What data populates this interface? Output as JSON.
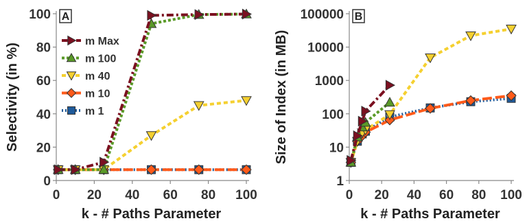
{
  "chart_data": [
    {
      "type": "line",
      "panel_label": "A",
      "xlabel": "k - # Paths Parameter",
      "ylabel": "Selectivity (in %)",
      "xlim": [
        0,
        100
      ],
      "ylim": [
        0,
        100
      ],
      "xticks": [
        0,
        20,
        40,
        60,
        80,
        100
      ],
      "yticks": [
        0,
        20,
        40,
        60,
        80,
        100
      ],
      "yscale": "linear",
      "legend_position": "top-left",
      "series": [
        {
          "name": "m Max",
          "color": "#7b1020",
          "dash": "10,4,3,4",
          "marker": "triangle-right",
          "x": [
            1,
            10,
            25,
            50,
            75,
            100
          ],
          "y": [
            6.5,
            6.5,
            11,
            99,
            99.5,
            99.8
          ]
        },
        {
          "name": "m 100",
          "color": "#5a9a28",
          "dash": "4,3",
          "marker": "triangle-up",
          "x": [
            1,
            10,
            25,
            50,
            75,
            100
          ],
          "y": [
            6.5,
            6.5,
            6.5,
            94,
            99.5,
            99.8
          ]
        },
        {
          "name": "m 40",
          "color": "#f5d030",
          "dash": "6,4",
          "marker": "triangle-down",
          "x": [
            1,
            10,
            25,
            50,
            75,
            100
          ],
          "y": [
            6.5,
            6.5,
            6.5,
            27,
            45,
            48
          ]
        },
        {
          "name": "m 10",
          "color": "#ff5a1a",
          "dash": "14,5",
          "marker": "diamond",
          "x": [
            1,
            10,
            25,
            50,
            75,
            100
          ],
          "y": [
            6.5,
            6.5,
            6.5,
            6.5,
            6.5,
            6.5
          ]
        },
        {
          "name": "m 1",
          "color": "#1f5a9a",
          "dash": "2,3",
          "marker": "square",
          "x": [
            1,
            10,
            25,
            50,
            75,
            100
          ],
          "y": [
            6.5,
            6.5,
            6.5,
            6.5,
            6.5,
            6.5
          ]
        }
      ]
    },
    {
      "type": "line",
      "panel_label": "B",
      "xlabel": "k - # Paths Parameter",
      "ylabel": "Size of Index (in MB)",
      "xlim": [
        0,
        100
      ],
      "ylim": [
        1,
        100000
      ],
      "xticks": [
        0,
        20,
        40,
        60,
        80,
        100
      ],
      "yticks": [
        1,
        10,
        100,
        1000,
        10000,
        100000
      ],
      "yscale": "log",
      "series": [
        {
          "name": "m Max",
          "color": "#7b1020",
          "dash": "10,4,3,4",
          "marker": "triangle-right",
          "x": [
            1,
            5,
            8,
            10,
            25
          ],
          "y": [
            4,
            22,
            60,
            120,
            720
          ]
        },
        {
          "name": "m 100",
          "color": "#5a9a28",
          "dash": "4,3",
          "marker": "triangle-up",
          "x": [
            1,
            5,
            8,
            10,
            25
          ],
          "y": [
            3.5,
            20,
            40,
            55,
            220
          ]
        },
        {
          "name": "m 40",
          "color": "#f5d030",
          "dash": "6,4",
          "marker": "triangle-down",
          "x": [
            1,
            5,
            8,
            10,
            25,
            50,
            75,
            100
          ],
          "y": [
            3.5,
            15,
            27,
            33,
            95,
            4800,
            22000,
            35000
          ]
        },
        {
          "name": "m 10",
          "color": "#ff5a1a",
          "dash": "14,5",
          "marker": "diamond",
          "x": [
            1,
            5,
            8,
            10,
            25,
            50,
            75,
            100
          ],
          "y": [
            3.5,
            15,
            22,
            28,
            65,
            145,
            250,
            350
          ]
        },
        {
          "name": "m 1",
          "color": "#1f5a9a",
          "dash": "2,3",
          "marker": "square",
          "x": [
            1,
            5,
            8,
            10,
            25,
            50,
            75,
            100
          ],
          "y": [
            3.5,
            15,
            25,
            30,
            80,
            150,
            230,
            290
          ]
        }
      ]
    }
  ]
}
